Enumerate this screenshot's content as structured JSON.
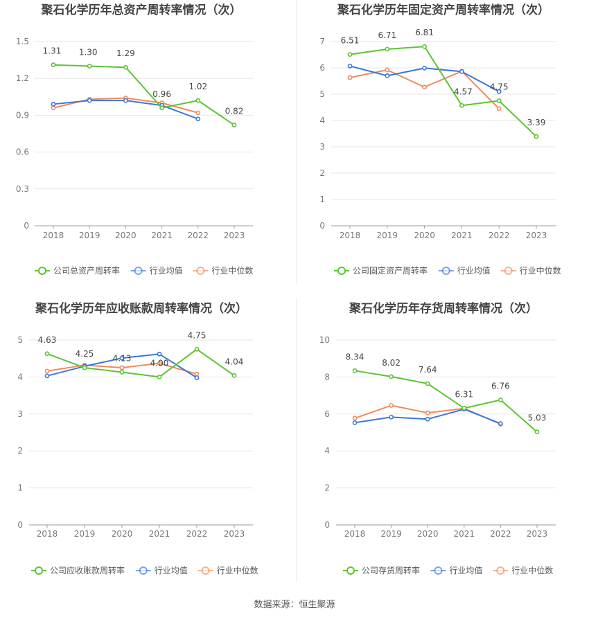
{
  "source_label": "数据来源：恒生聚源",
  "colors": {
    "company": "#5cc431",
    "avg": "#3a78d8",
    "median": "#f08a5d",
    "grid": "#e6e6e6",
    "axis": "#9a9a9a",
    "title": "#444444",
    "tick": "#777777",
    "label": "#444444"
  },
  "chart_data": [
    {
      "type": "line",
      "title": "聚石化学历年总资产周转率情况（次）",
      "categories": [
        "2018",
        "2019",
        "2020",
        "2021",
        "2022",
        "2023"
      ],
      "ylim": [
        0,
        1.5
      ],
      "yticks": [
        "0",
        "0.3",
        "0.6",
        "0.9",
        "1.2",
        "1.5"
      ],
      "ytick_values": [
        0,
        0.3,
        0.6,
        0.9,
        1.2,
        1.5
      ],
      "grid": true,
      "legend_position": "bottom",
      "series": [
        {
          "name": "公司总资产周转率",
          "key": "company",
          "values": [
            1.31,
            1.3,
            1.29,
            0.96,
            1.02,
            0.82
          ],
          "labels": [
            "1.31",
            "1.30",
            "1.29",
            "0.96",
            "1.02",
            "0.82"
          ]
        },
        {
          "name": "行业均值",
          "key": "avg",
          "values": [
            0.99,
            1.02,
            1.02,
            0.98,
            0.87,
            null
          ]
        },
        {
          "name": "行业中位数",
          "key": "median",
          "values": [
            0.96,
            1.03,
            1.04,
            1.0,
            0.92,
            null
          ]
        }
      ]
    },
    {
      "type": "line",
      "title": "聚石化学历年固定资产周转率情况（次）",
      "categories": [
        "2018",
        "2019",
        "2020",
        "2021",
        "2022",
        "2023"
      ],
      "ylim": [
        0,
        7
      ],
      "yticks": [
        "0",
        "1",
        "2",
        "3",
        "4",
        "5",
        "6",
        "7"
      ],
      "ytick_values": [
        0,
        1,
        2,
        3,
        4,
        5,
        6,
        7
      ],
      "grid": true,
      "legend_position": "bottom",
      "series": [
        {
          "name": "公司固定资产周转率",
          "key": "company",
          "values": [
            6.51,
            6.71,
            6.81,
            4.57,
            4.75,
            3.39
          ],
          "labels": [
            "6.51",
            "6.71",
            "6.81",
            "4.57",
            "4.75",
            "3.39"
          ]
        },
        {
          "name": "行业均值",
          "key": "avg",
          "values": [
            6.07,
            5.7,
            5.99,
            5.86,
            5.1,
            null
          ]
        },
        {
          "name": "行业中位数",
          "key": "median",
          "values": [
            5.63,
            5.92,
            5.27,
            5.87,
            4.45,
            null
          ]
        }
      ]
    },
    {
      "type": "line",
      "title": "聚石化学历年应收账款周转率情况（次）",
      "categories": [
        "2018",
        "2019",
        "2020",
        "2021",
        "2022",
        "2023"
      ],
      "ylim": [
        0,
        5
      ],
      "yticks": [
        "0",
        "1",
        "2",
        "3",
        "4",
        "5"
      ],
      "ytick_values": [
        0,
        1,
        2,
        3,
        4,
        5
      ],
      "grid": true,
      "legend_position": "bottom",
      "series": [
        {
          "name": "公司应收账款周转率",
          "key": "company",
          "values": [
            4.63,
            4.25,
            4.13,
            4.0,
            4.75,
            4.04
          ],
          "labels": [
            "4.63",
            "4.25",
            "4.13",
            "4.00",
            "4.75",
            "4.04"
          ]
        },
        {
          "name": "行业均值",
          "key": "avg",
          "values": [
            4.03,
            4.29,
            4.51,
            4.62,
            3.98,
            null
          ]
        },
        {
          "name": "行业中位数",
          "key": "median",
          "values": [
            4.16,
            4.32,
            4.25,
            4.37,
            4.08,
            null
          ]
        }
      ]
    },
    {
      "type": "line",
      "title": "聚石化学历年存货周转率情况（次）",
      "categories": [
        "2018",
        "2019",
        "2020",
        "2021",
        "2022",
        "2023"
      ],
      "ylim": [
        0,
        10
      ],
      "yticks": [
        "0",
        "2",
        "4",
        "6",
        "8",
        "10"
      ],
      "ytick_values": [
        0,
        2,
        4,
        6,
        8,
        10
      ],
      "grid": true,
      "legend_position": "bottom",
      "series": [
        {
          "name": "公司存货周转率",
          "key": "company",
          "values": [
            8.34,
            8.02,
            7.64,
            6.31,
            6.76,
            5.03
          ],
          "labels": [
            "8.34",
            "8.02",
            "7.64",
            "6.31",
            "6.76",
            "5.03"
          ]
        },
        {
          "name": "行业均值",
          "key": "avg",
          "values": [
            5.53,
            5.83,
            5.72,
            6.26,
            5.48,
            null
          ]
        },
        {
          "name": "行业中位数",
          "key": "median",
          "values": [
            5.77,
            6.46,
            6.06,
            6.3,
            5.45,
            null
          ]
        }
      ]
    }
  ]
}
